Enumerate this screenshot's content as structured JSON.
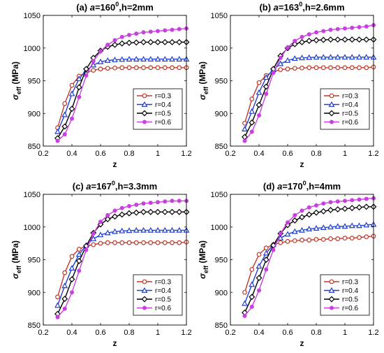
{
  "colors": {
    "r0.3": "#c0392b",
    "r0.4": "#1f3fd6",
    "r0.5": "#000000",
    "r0.6": "#c93fe0"
  },
  "chart_data": [
    {
      "type": "line",
      "title_prefix": "(a) ",
      "title_a": "a",
      "title_mid": "=160",
      "title_sup": "0",
      "title_end": ",h=2mm",
      "xlabel": "z",
      "ylabel_main": "σ",
      "ylabel_sub": "eff",
      "ylabel_unit": " (MPa)",
      "xlim": [
        0.2,
        1.2
      ],
      "ylim": [
        850,
        1050
      ],
      "xticks": [
        "0.2",
        "0.4",
        "0.6",
        "0.8",
        "1",
        "1.2"
      ],
      "yticks": [
        "850",
        "900",
        "950",
        "1000",
        "1050"
      ],
      "legend_position": "center-right",
      "x": [
        0.3,
        0.35,
        0.4,
        0.45,
        0.5,
        0.55,
        0.6,
        0.65,
        0.7,
        0.75,
        0.8,
        0.85,
        0.9,
        0.95,
        1.0,
        1.05,
        1.1,
        1.15,
        1.2
      ],
      "series": [
        {
          "name": "r=0.3",
          "marker": "circle",
          "values": [
            878,
            915,
            943,
            957,
            963,
            966,
            968,
            969,
            969.5,
            970,
            970,
            970,
            970,
            970,
            970,
            970,
            970,
            970,
            970
          ]
        },
        {
          "name": "r=0.4",
          "marker": "triangle",
          "values": [
            872,
            898,
            930,
            953,
            966,
            974,
            979,
            981,
            982,
            982.5,
            983,
            983,
            983,
            983,
            983,
            983,
            983,
            983,
            983
          ]
        },
        {
          "name": "r=0.5",
          "marker": "diamond",
          "values": [
            862,
            880,
            907,
            940,
            968,
            985,
            996,
            1002,
            1005,
            1007,
            1008,
            1008.5,
            1009,
            1009,
            1009,
            1009,
            1009,
            1009,
            1009
          ]
        },
        {
          "name": "r=0.6",
          "marker": "star",
          "values": [
            858,
            868,
            892,
            925,
            958,
            980,
            995,
            1005,
            1012,
            1017,
            1020,
            1022,
            1024,
            1025,
            1026,
            1027,
            1028,
            1029,
            1030
          ]
        }
      ]
    },
    {
      "type": "line",
      "title_prefix": "(b) ",
      "title_a": "a",
      "title_mid": "=163",
      "title_sup": "0",
      "title_end": ",h=2.6mm",
      "xlabel": "z",
      "ylabel_main": "σ",
      "ylabel_sub": "eff",
      "ylabel_unit": " (MPa)",
      "xlim": [
        0.2,
        1.2
      ],
      "ylim": [
        850,
        1050
      ],
      "xticks": [
        "0.2",
        "0.4",
        "0.6",
        "0.8",
        "1",
        "1.2"
      ],
      "yticks": [
        "850",
        "900",
        "950",
        "1000",
        "1050"
      ],
      "legend_position": "center-right",
      "x": [
        0.3,
        0.35,
        0.4,
        0.45,
        0.5,
        0.55,
        0.6,
        0.65,
        0.7,
        0.75,
        0.8,
        0.85,
        0.9,
        0.95,
        1.0,
        1.05,
        1.1,
        1.15,
        1.2
      ],
      "series": [
        {
          "name": "r=0.3",
          "marker": "circle",
          "values": [
            885,
            922,
            947,
            958,
            964,
            967,
            968,
            969,
            969.5,
            970,
            970,
            970,
            970,
            970,
            970,
            970,
            970,
            970,
            971
          ]
        },
        {
          "name": "r=0.4",
          "marker": "triangle",
          "values": [
            876,
            903,
            932,
            955,
            967,
            976,
            981,
            984,
            985,
            985.5,
            986,
            986,
            986,
            986,
            986,
            986,
            986,
            986,
            986
          ]
        },
        {
          "name": "r=0.5",
          "marker": "diamond",
          "values": [
            864,
            886,
            913,
            941,
            968,
            988,
            1000,
            1006,
            1009,
            1011,
            1012,
            1012.5,
            1013,
            1013,
            1013,
            1013,
            1013,
            1013,
            1013
          ]
        },
        {
          "name": "r=0.6",
          "marker": "star",
          "values": [
            858,
            872,
            897,
            930,
            962,
            985,
            1001,
            1011,
            1017,
            1021,
            1024,
            1026,
            1028,
            1029,
            1030,
            1031,
            1032,
            1033,
            1035
          ]
        }
      ]
    },
    {
      "type": "line",
      "title_prefix": "(c) ",
      "title_a": "a",
      "title_mid": "=167",
      "title_sup": "0",
      "title_end": ",h=3.3mm",
      "xlabel": "z",
      "ylabel_main": "σ",
      "ylabel_sub": "eff",
      "ylabel_unit": " (MPa)",
      "xlim": [
        0.2,
        1.2
      ],
      "ylim": [
        850,
        1050
      ],
      "xticks": [
        "0.2",
        "0.4",
        "0.6",
        "0.8",
        "1",
        "1.2"
      ],
      "yticks": [
        "850",
        "900",
        "950",
        "1000",
        "1050"
      ],
      "legend_position": "bottom-right",
      "x": [
        0.3,
        0.35,
        0.4,
        0.45,
        0.5,
        0.55,
        0.6,
        0.65,
        0.7,
        0.75,
        0.8,
        0.85,
        0.9,
        0.95,
        1.0,
        1.05,
        1.1,
        1.15,
        1.2
      ],
      "series": [
        {
          "name": "r=0.3",
          "marker": "circle",
          "values": [
            893,
            930,
            955,
            966,
            971,
            973,
            975,
            976,
            976,
            976,
            976,
            976,
            976,
            976,
            976,
            976,
            976,
            976,
            977
          ]
        },
        {
          "name": "r=0.4",
          "marker": "triangle",
          "values": [
            880,
            910,
            937,
            958,
            972,
            982,
            988,
            991,
            993,
            994,
            994.5,
            995,
            995,
            995,
            995,
            995,
            995,
            995,
            995
          ]
        },
        {
          "name": "r=0.5",
          "marker": "diamond",
          "values": [
            867,
            890,
            920,
            948,
            971,
            991,
            1004,
            1012,
            1016,
            1019,
            1021,
            1022,
            1023,
            1023,
            1023,
            1023,
            1023,
            1023,
            1023
          ]
        },
        {
          "name": "r=0.6",
          "marker": "star",
          "values": [
            862,
            875,
            900,
            933,
            965,
            990,
            1008,
            1018,
            1025,
            1029,
            1032,
            1034,
            1036,
            1037,
            1038,
            1039,
            1040,
            1040,
            1040
          ]
        }
      ]
    },
    {
      "type": "line",
      "title_prefix": "(d) ",
      "title_a": "a",
      "title_mid": "=170",
      "title_sup": "0",
      "title_end": ",h=4mm",
      "xlabel": "z",
      "ylabel_main": "σ",
      "ylabel_sub": "eff",
      "ylabel_unit": " (MPa)",
      "xlim": [
        0.2,
        1.2
      ],
      "ylim": [
        850,
        1050
      ],
      "xticks": [
        "0.2",
        "0.4",
        "0.6",
        "0.8",
        "1",
        "1.2"
      ],
      "yticks": [
        "850",
        "900",
        "950",
        "1000",
        "1050"
      ],
      "legend_position": "bottom-right",
      "x": [
        0.3,
        0.35,
        0.4,
        0.45,
        0.5,
        0.55,
        0.6,
        0.65,
        0.7,
        0.75,
        0.8,
        0.85,
        0.9,
        0.95,
        1.0,
        1.05,
        1.1,
        1.15,
        1.2
      ],
      "series": [
        {
          "name": "r=0.3",
          "marker": "circle",
          "values": [
            900,
            935,
            958,
            968,
            973,
            976,
            978,
            979,
            980,
            980,
            981,
            981,
            982,
            982,
            983,
            983,
            984,
            985,
            986
          ]
        },
        {
          "name": "r=0.4",
          "marker": "triangle",
          "values": [
            883,
            912,
            940,
            960,
            973,
            983,
            989,
            993,
            995,
            997,
            998,
            999,
            1000,
            1001,
            1001,
            1002,
            1002,
            1003,
            1004
          ]
        },
        {
          "name": "r=0.5",
          "marker": "diamond",
          "values": [
            869,
            893,
            922,
            950,
            972,
            990,
            1003,
            1010,
            1015,
            1019,
            1022,
            1024,
            1026,
            1027,
            1028,
            1029,
            1030,
            1031,
            1031
          ]
        },
        {
          "name": "r=0.6",
          "marker": "star",
          "values": [
            864,
            878,
            903,
            935,
            965,
            990,
            1007,
            1018,
            1025,
            1030,
            1033,
            1036,
            1038,
            1039,
            1040,
            1041,
            1042,
            1043,
            1044
          ]
        }
      ]
    }
  ]
}
